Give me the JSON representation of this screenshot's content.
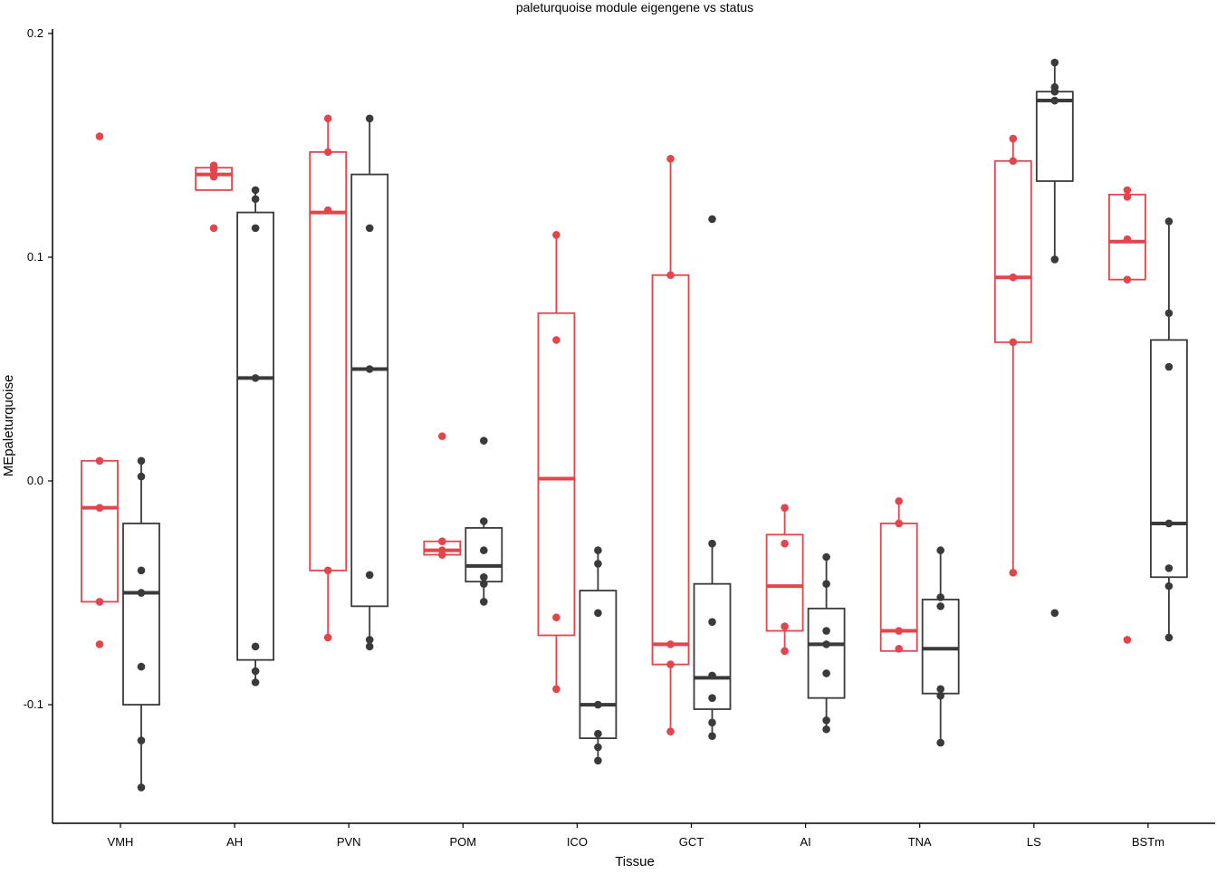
{
  "chart_data": {
    "type": "boxplot",
    "title": "paleturquoise module eigengene vs status",
    "xlabel": "Tissue",
    "ylabel": "MEpaleturquoise",
    "ylim": [
      -0.153,
      0.202
    ],
    "yticks": [
      -0.1,
      0.0,
      0.1,
      0.2
    ],
    "ytick_labels": [
      "-0.1",
      "0.0",
      "0.1",
      "0.2"
    ],
    "grid": false,
    "legend": "none",
    "categories": [
      "VMH",
      "AH",
      "PVN",
      "POM",
      "ICO",
      "GCT",
      "AI",
      "TNA",
      "LS",
      "BSTm"
    ],
    "series": [
      {
        "color": "#e2454b",
        "boxes": [
          {
            "category": "VMH",
            "q1": -0.054,
            "median": -0.012,
            "q3": 0.009,
            "lower": -0.054,
            "upper": 0.009,
            "outliers": [
              0.154,
              -0.073
            ],
            "points": [
              0.154,
              0.009,
              -0.012,
              -0.054,
              -0.073
            ]
          },
          {
            "category": "AH",
            "q1": 0.13,
            "median": 0.137,
            "q3": 0.14,
            "lower": 0.13,
            "upper": 0.14,
            "outliers": [
              0.113
            ],
            "points": [
              0.141,
              0.139,
              0.136,
              0.113
            ]
          },
          {
            "category": "PVN",
            "q1": -0.04,
            "median": 0.12,
            "q3": 0.147,
            "lower": -0.07,
            "upper": 0.162,
            "outliers": [],
            "points": [
              0.162,
              0.147,
              0.121,
              -0.04,
              -0.07
            ]
          },
          {
            "category": "POM",
            "q1": -0.033,
            "median": -0.031,
            "q3": -0.027,
            "lower": -0.033,
            "upper": -0.027,
            "outliers": [
              0.02
            ],
            "points": [
              0.02,
              -0.027,
              -0.031,
              -0.033
            ]
          },
          {
            "category": "ICO",
            "q1": -0.069,
            "median": 0.001,
            "q3": 0.075,
            "lower": -0.093,
            "upper": 0.11,
            "outliers": [],
            "points": [
              0.11,
              0.063,
              -0.061,
              -0.093
            ]
          },
          {
            "category": "GCT",
            "q1": -0.082,
            "median": -0.073,
            "q3": 0.092,
            "lower": -0.112,
            "upper": 0.144,
            "outliers": [],
            "points": [
              0.144,
              0.092,
              -0.073,
              -0.082,
              -0.112
            ]
          },
          {
            "category": "AI",
            "q1": -0.067,
            "median": -0.047,
            "q3": -0.024,
            "lower": -0.076,
            "upper": -0.012,
            "outliers": [],
            "points": [
              -0.012,
              -0.028,
              -0.065,
              -0.076
            ]
          },
          {
            "category": "TNA",
            "q1": -0.076,
            "median": -0.067,
            "q3": -0.019,
            "lower": -0.076,
            "upper": -0.009,
            "outliers": [],
            "points": [
              -0.009,
              -0.019,
              -0.067,
              -0.075
            ]
          },
          {
            "category": "LS",
            "q1": 0.062,
            "median": 0.091,
            "q3": 0.143,
            "lower": -0.041,
            "upper": 0.153,
            "outliers": [],
            "points": [
              0.153,
              0.143,
              0.091,
              0.062,
              -0.041
            ]
          },
          {
            "category": "BSTm",
            "q1": 0.09,
            "median": 0.107,
            "q3": 0.128,
            "lower": 0.09,
            "upper": 0.128,
            "outliers": [
              -0.071
            ],
            "points": [
              0.13,
              0.127,
              0.108,
              0.09,
              -0.071
            ]
          }
        ]
      },
      {
        "color": "#3a3a3a",
        "boxes": [
          {
            "category": "VMH",
            "q1": -0.1,
            "median": -0.05,
            "q3": -0.019,
            "lower": -0.137,
            "upper": 0.009,
            "outliers": [],
            "points": [
              0.009,
              0.002,
              -0.04,
              -0.05,
              -0.083,
              -0.116,
              -0.137
            ]
          },
          {
            "category": "AH",
            "q1": -0.08,
            "median": 0.046,
            "q3": 0.12,
            "lower": -0.09,
            "upper": 0.13,
            "outliers": [],
            "points": [
              0.13,
              0.126,
              0.113,
              0.046,
              -0.074,
              -0.085,
              -0.09
            ]
          },
          {
            "category": "PVN",
            "q1": -0.056,
            "median": 0.05,
            "q3": 0.137,
            "lower": -0.074,
            "upper": 0.162,
            "outliers": [],
            "points": [
              0.162,
              0.113,
              0.05,
              -0.042,
              -0.071,
              -0.074
            ]
          },
          {
            "category": "POM",
            "q1": -0.045,
            "median": -0.038,
            "q3": -0.021,
            "lower": -0.054,
            "upper": -0.018,
            "outliers": [
              0.018
            ],
            "points": [
              0.018,
              -0.018,
              -0.031,
              -0.043,
              -0.046,
              -0.054
            ]
          },
          {
            "category": "ICO",
            "q1": -0.115,
            "median": -0.1,
            "q3": -0.049,
            "lower": -0.125,
            "upper": -0.031,
            "outliers": [],
            "points": [
              -0.031,
              -0.037,
              -0.059,
              -0.1,
              -0.113,
              -0.119,
              -0.125
            ]
          },
          {
            "category": "GCT",
            "q1": -0.102,
            "median": -0.088,
            "q3": -0.046,
            "lower": -0.114,
            "upper": -0.028,
            "outliers": [
              0.117
            ],
            "points": [
              0.117,
              -0.028,
              -0.063,
              -0.087,
              -0.097,
              -0.108,
              -0.114
            ]
          },
          {
            "category": "AI",
            "q1": -0.097,
            "median": -0.073,
            "q3": -0.057,
            "lower": -0.111,
            "upper": -0.034,
            "outliers": [],
            "points": [
              -0.034,
              -0.046,
              -0.067,
              -0.073,
              -0.086,
              -0.107,
              -0.111
            ]
          },
          {
            "category": "TNA",
            "q1": -0.095,
            "median": -0.075,
            "q3": -0.053,
            "lower": -0.117,
            "upper": -0.031,
            "outliers": [],
            "points": [
              -0.031,
              -0.052,
              -0.056,
              -0.093,
              -0.096,
              -0.117
            ]
          },
          {
            "category": "LS",
            "q1": 0.134,
            "median": 0.17,
            "q3": 0.174,
            "lower": 0.099,
            "upper": 0.187,
            "outliers": [
              -0.059
            ],
            "points": [
              0.187,
              0.176,
              0.174,
              0.17,
              0.099,
              -0.059
            ]
          },
          {
            "category": "BSTm",
            "q1": -0.043,
            "median": -0.019,
            "q3": 0.063,
            "lower": -0.07,
            "upper": 0.116,
            "outliers": [],
            "points": [
              0.116,
              0.075,
              0.051,
              -0.019,
              -0.039,
              -0.047,
              -0.07
            ]
          }
        ]
      }
    ]
  }
}
